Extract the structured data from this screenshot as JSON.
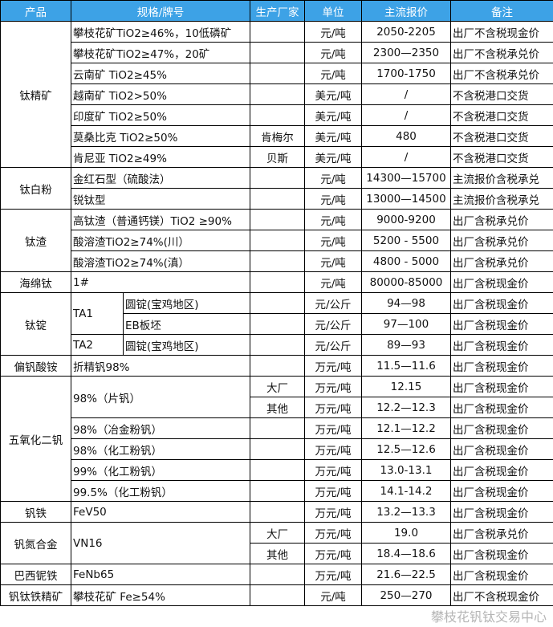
{
  "header": [
    "产品",
    "规格/牌号",
    "生产厂家",
    "单位",
    "主流报价",
    "备注"
  ],
  "watermark": "攀枝花钒钛交易中心",
  "colors": {
    "header_bg": "#3da2e6",
    "header_text": "#ffffff"
  },
  "groups": [
    {
      "product": "钛精矿",
      "items": [
        {
          "spec": "攀枝花矿TiO2≥46%，10低磷矿",
          "rows": [
            {
              "producer": "",
              "unit": "元/吨",
              "price": "2050-2205",
              "note": "出厂不含税现金价"
            }
          ]
        },
        {
          "spec": "攀枝花矿TiO2≥47%，20矿",
          "rows": [
            {
              "producer": "",
              "unit": "元/吨",
              "price": "2300—2350",
              "note": "出厂不含税承兑价"
            }
          ]
        },
        {
          "spec": "云南矿 TiO2≥45%",
          "rows": [
            {
              "producer": "",
              "unit": "元/吨",
              "price": "1700-1750",
              "note": "出厂不含税承兑价"
            }
          ]
        },
        {
          "spec": "越南矿 TiO2>50%",
          "rows": [
            {
              "producer": "",
              "unit": "美元/吨",
              "price": "/",
              "note": "不含税港口交货"
            }
          ]
        },
        {
          "spec": "印度矿 TiO2≥50%",
          "rows": [
            {
              "producer": "",
              "unit": "美元/吨",
              "price": "/",
              "note": "不含税港口交货"
            }
          ]
        },
        {
          "spec": "莫桑比克 TiO2≥50%",
          "rows": [
            {
              "producer": "肯梅尔",
              "unit": "美元/吨",
              "price": "480",
              "note": "不含税港口交货"
            }
          ]
        },
        {
          "spec": "肯尼亚 TiO2≥49%",
          "rows": [
            {
              "producer": "贝斯",
              "unit": "美元/吨",
              "price": "/",
              "note": "不含税港口交货"
            }
          ]
        }
      ]
    },
    {
      "product": "钛白粉",
      "items": [
        {
          "spec": "金红石型（硫酸法）",
          "rows": [
            {
              "producer": "",
              "unit": "元/吨",
              "price": "14300—15700",
              "note": "主流报价含税承兑"
            }
          ]
        },
        {
          "spec": "锐钛型",
          "rows": [
            {
              "producer": "",
              "unit": "元/吨",
              "price": "13000—14500",
              "note": "主流报价含税承兑"
            }
          ]
        }
      ]
    },
    {
      "product": "钛渣",
      "items": [
        {
          "spec": "高钛渣（普通钙镁）TiO2 ≥90%",
          "rows": [
            {
              "producer": "",
              "unit": "元/吨",
              "price": "9000-9200",
              "note": "出厂含税承兑价"
            }
          ]
        },
        {
          "spec": "酸溶渣TiO2≥74%(川）",
          "rows": [
            {
              "producer": "",
              "unit": "元/吨",
              "price": "5200 - 5500",
              "note": "出厂含税承兑价"
            }
          ]
        },
        {
          "spec": "酸溶渣TiO2≥74%(滇）",
          "rows": [
            {
              "producer": "",
              "unit": "元/吨",
              "price": "4800 - 5000",
              "note": "出厂含税承兑价"
            }
          ]
        }
      ]
    },
    {
      "product": "海绵钛",
      "items": [
        {
          "spec": "1#",
          "rows": [
            {
              "producer": "",
              "unit": "元/吨",
              "price": "80000-85000",
              "note": "出厂含税现金价"
            }
          ]
        }
      ]
    },
    {
      "product": "钛锭",
      "items": [
        {
          "spec": "TA1",
          "subs": [
            {
              "sub_spec": "圆锭(宝鸡地区)",
              "unit": "元/公斤",
              "price": "94—98",
              "note": "出厂含税现金价"
            },
            {
              "sub_spec": "EB板坯",
              "unit": "元/公斤",
              "price": "97—100",
              "note": "出厂含税现金价"
            }
          ]
        },
        {
          "spec": "TA2",
          "subs": [
            {
              "sub_spec": "圆锭(宝鸡地区)",
              "unit": "元/公斤",
              "price": "89—93",
              "note": "出厂含税现金价"
            }
          ]
        }
      ]
    },
    {
      "product": "偏钒酸铵",
      "items": [
        {
          "spec": "折精钒98%",
          "rows": [
            {
              "producer": "",
              "unit": "万元/吨",
              "price": "11.5—11.6",
              "note": "出厂含税现金价"
            }
          ]
        }
      ]
    },
    {
      "product": "五氧化二钒",
      "items": [
        {
          "spec": "98%（片钒）",
          "rows": [
            {
              "producer": "大厂",
              "unit": "万元/吨",
              "price": "12.15",
              "note": "出厂含税现金价"
            },
            {
              "producer": "其他",
              "unit": "万元/吨",
              "price": "12.2—12.3",
              "note": "出厂含税现金价"
            }
          ]
        },
        {
          "spec": "98%（冶金粉钒）",
          "rows": [
            {
              "producer": "",
              "unit": "万元/吨",
              "price": "12.1—12.2",
              "note": "出厂含税现金价"
            }
          ]
        },
        {
          "spec": "98%（化工粉钒）",
          "rows": [
            {
              "producer": "",
              "unit": "万元/吨",
              "price": "12.5—12.6",
              "note": "出厂含税现金价"
            }
          ]
        },
        {
          "spec": "99%（化工粉钒）",
          "rows": [
            {
              "producer": "",
              "unit": "万元/吨",
              "price": "13.0-13.1",
              "note": "出厂含税现金价"
            }
          ]
        },
        {
          "spec": "99.5%（化工粉钒）",
          "rows": [
            {
              "producer": "",
              "unit": "万元/吨",
              "price": "14.1-14.2",
              "note": "出厂含税现金价"
            }
          ]
        }
      ]
    },
    {
      "product": "钒铁",
      "items": [
        {
          "spec": "FeV50",
          "rows": [
            {
              "producer": "",
              "unit": "万元/吨",
              "price": "13.2—13.3",
              "note": "出厂含税现金价"
            }
          ]
        }
      ]
    },
    {
      "product": "钒氮合金",
      "items": [
        {
          "spec": "VN16",
          "rows": [
            {
              "producer": "大厂",
              "unit": "万元/吨",
              "price": "19.0",
              "note": "出厂含税承兑价"
            },
            {
              "producer": "其他",
              "unit": "万元/吨",
              "price": "18.4—18.6",
              "note": "出厂含税现金价"
            }
          ]
        }
      ]
    },
    {
      "product": "巴西铌铁",
      "items": [
        {
          "spec": "FeNb65",
          "rows": [
            {
              "producer": "",
              "unit": "万元/吨",
              "price": "21.6—22.5",
              "note": "出厂含税现金价"
            }
          ]
        }
      ]
    },
    {
      "product": "钒钛铁精矿",
      "items": [
        {
          "spec": "攀枝花矿 Fe≥54%",
          "rows": [
            {
              "producer": "",
              "unit": "元/吨",
              "price": "250—270",
              "note": "出厂不含税现金价"
            }
          ]
        }
      ]
    }
  ]
}
